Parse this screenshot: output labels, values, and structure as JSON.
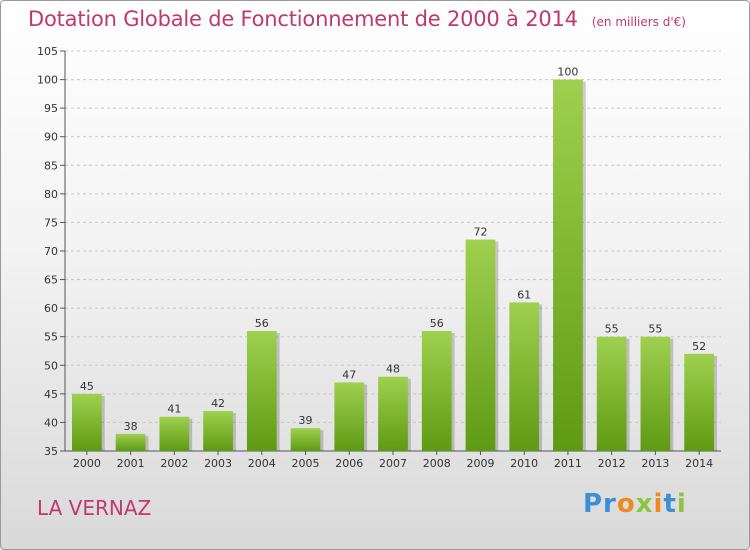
{
  "header": {
    "title": "Dotation Globale de Fonctionnement de 2000 à 2014",
    "unit": "(en milliers d'€)"
  },
  "commune": "LA VERNAZ",
  "logo": {
    "text": "Proxiti"
  },
  "colors": {
    "title": "#c0396e",
    "bar_top": "#9fd04f",
    "bar_bottom": "#5f9a14",
    "grid": "#c8c8c8"
  },
  "chart_data": {
    "type": "bar",
    "title": "Dotation Globale de Fonctionnement de 2000 à 2014",
    "subtitle": "(en milliers d'€)",
    "xlabel": "",
    "ylabel": "",
    "categories": [
      "2000",
      "2001",
      "2002",
      "2003",
      "2004",
      "2005",
      "2006",
      "2007",
      "2008",
      "2009",
      "2010",
      "2011",
      "2012",
      "2013",
      "2014"
    ],
    "values": [
      45,
      38,
      41,
      42,
      56,
      39,
      47,
      48,
      56,
      72,
      61,
      100,
      55,
      55,
      52
    ],
    "ylim": [
      35,
      105
    ],
    "yticks": [
      35,
      40,
      45,
      50,
      55,
      60,
      65,
      70,
      75,
      80,
      85,
      90,
      95,
      100,
      105
    ],
    "grid": true,
    "data_labels": true
  }
}
